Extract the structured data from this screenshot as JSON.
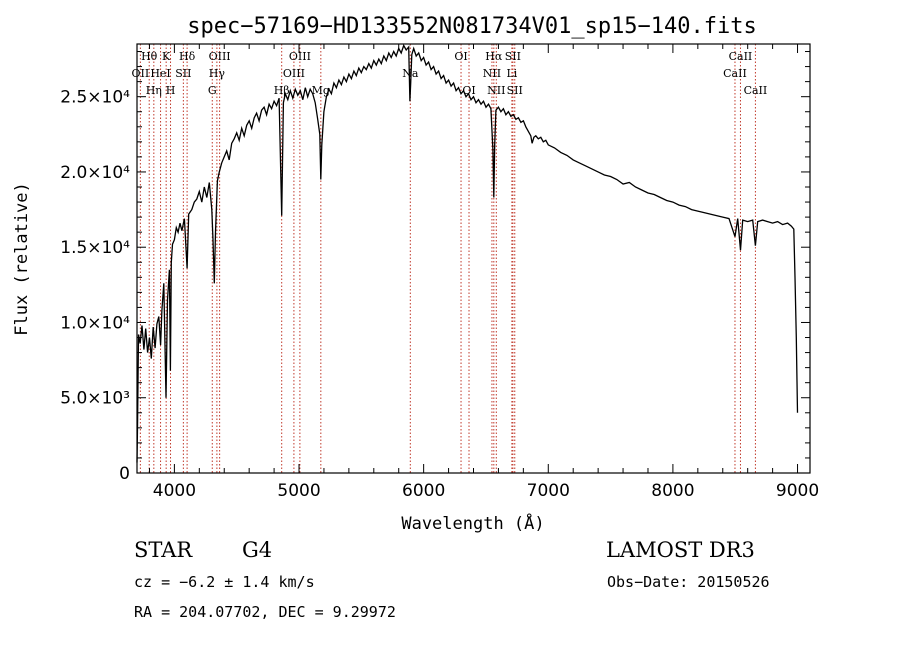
{
  "chart_data": {
    "type": "line",
    "title": "spec−57169−HD133552N081734V01_sp15−140.fits",
    "xlabel": "Wavelength (Å)",
    "ylabel": "Flux (relative)",
    "xlim": [
      3700,
      9100
    ],
    "ylim": [
      0,
      28500
    ],
    "x_ticks": [
      4000,
      5000,
      6000,
      7000,
      8000,
      9000
    ],
    "y_ticks": [
      {
        "value": 0,
        "label": "0"
      },
      {
        "value": 5000,
        "label": "5.0×10³"
      },
      {
        "value": 10000,
        "label": "1.0×10⁴"
      },
      {
        "value": 15000,
        "label": "1.5×10⁴"
      },
      {
        "value": 20000,
        "label": "2.0×10⁴"
      },
      {
        "value": 25000,
        "label": "2.5×10⁴"
      }
    ],
    "series": [
      {
        "name": "flux",
        "points": [
          [
            3700,
            700
          ],
          [
            3705,
            3500
          ],
          [
            3712,
            9200
          ],
          [
            3725,
            8600
          ],
          [
            3740,
            9800
          ],
          [
            3755,
            8200
          ],
          [
            3770,
            9600
          ],
          [
            3785,
            8000
          ],
          [
            3800,
            9000
          ],
          [
            3815,
            7600
          ],
          [
            3830,
            9700
          ],
          [
            3845,
            8300
          ],
          [
            3860,
            9900
          ],
          [
            3875,
            10400
          ],
          [
            3889,
            8500
          ],
          [
            3900,
            10800
          ],
          [
            3915,
            12600
          ],
          [
            3933,
            5000
          ],
          [
            3945,
            11500
          ],
          [
            3960,
            13500
          ],
          [
            3968,
            6800
          ],
          [
            3975,
            14000
          ],
          [
            3985,
            15200
          ],
          [
            4000,
            15500
          ],
          [
            4015,
            16300
          ],
          [
            4030,
            16000
          ],
          [
            4045,
            16600
          ],
          [
            4060,
            16100
          ],
          [
            4080,
            16900
          ],
          [
            4102,
            13600
          ],
          [
            4115,
            17200
          ],
          [
            4140,
            17500
          ],
          [
            4160,
            18000
          ],
          [
            4180,
            18200
          ],
          [
            4200,
            18700
          ],
          [
            4220,
            18000
          ],
          [
            4240,
            19000
          ],
          [
            4260,
            18300
          ],
          [
            4280,
            19300
          ],
          [
            4300,
            17500
          ],
          [
            4310,
            15500
          ],
          [
            4320,
            12600
          ],
          [
            4330,
            16000
          ],
          [
            4345,
            19400
          ],
          [
            4360,
            20000
          ],
          [
            4380,
            20600
          ],
          [
            4400,
            21000
          ],
          [
            4420,
            21400
          ],
          [
            4440,
            20800
          ],
          [
            4460,
            21900
          ],
          [
            4480,
            22200
          ],
          [
            4500,
            22600
          ],
          [
            4520,
            22100
          ],
          [
            4540,
            22900
          ],
          [
            4560,
            22400
          ],
          [
            4580,
            23100
          ],
          [
            4600,
            23400
          ],
          [
            4620,
            22900
          ],
          [
            4640,
            23600
          ],
          [
            4660,
            23900
          ],
          [
            4680,
            23400
          ],
          [
            4700,
            24100
          ],
          [
            4720,
            24300
          ],
          [
            4740,
            23800
          ],
          [
            4760,
            24500
          ],
          [
            4780,
            24200
          ],
          [
            4800,
            24700
          ],
          [
            4820,
            24400
          ],
          [
            4840,
            24900
          ],
          [
            4861,
            17100
          ],
          [
            4875,
            24600
          ],
          [
            4890,
            25200
          ],
          [
            4910,
            24800
          ],
          [
            4930,
            25400
          ],
          [
            4950,
            24900
          ],
          [
            4970,
            25500
          ],
          [
            4990,
            25100
          ],
          [
            5010,
            25400
          ],
          [
            5030,
            24800
          ],
          [
            5050,
            25600
          ],
          [
            5070,
            25000
          ],
          [
            5090,
            25500
          ],
          [
            5110,
            25200
          ],
          [
            5130,
            24600
          ],
          [
            5150,
            23500
          ],
          [
            5167,
            22500
          ],
          [
            5175,
            19500
          ],
          [
            5183,
            21800
          ],
          [
            5200,
            24000
          ],
          [
            5220,
            25000
          ],
          [
            5240,
            25500
          ],
          [
            5260,
            25200
          ],
          [
            5280,
            25900
          ],
          [
            5300,
            25600
          ],
          [
            5320,
            26100
          ],
          [
            5340,
            25800
          ],
          [
            5360,
            26300
          ],
          [
            5380,
            26000
          ],
          [
            5400,
            26500
          ],
          [
            5420,
            26200
          ],
          [
            5440,
            26700
          ],
          [
            5460,
            26400
          ],
          [
            5480,
            26900
          ],
          [
            5500,
            26600
          ],
          [
            5520,
            27000
          ],
          [
            5540,
            26800
          ],
          [
            5560,
            27200
          ],
          [
            5580,
            26900
          ],
          [
            5600,
            27400
          ],
          [
            5620,
            27100
          ],
          [
            5640,
            27500
          ],
          [
            5660,
            27200
          ],
          [
            5680,
            27700
          ],
          [
            5700,
            27400
          ],
          [
            5720,
            27900
          ],
          [
            5740,
            27600
          ],
          [
            5760,
            28000
          ],
          [
            5780,
            27700
          ],
          [
            5800,
            28200
          ],
          [
            5820,
            27900
          ],
          [
            5840,
            28400
          ],
          [
            5860,
            28100
          ],
          [
            5880,
            28300
          ],
          [
            5890,
            24700
          ],
          [
            5896,
            25900
          ],
          [
            5905,
            27800
          ],
          [
            5920,
            28200
          ],
          [
            5940,
            27700
          ],
          [
            5960,
            27900
          ],
          [
            5980,
            27400
          ],
          [
            6000,
            27600
          ],
          [
            6020,
            27100
          ],
          [
            6040,
            27300
          ],
          [
            6060,
            26800
          ],
          [
            6080,
            27000
          ],
          [
            6100,
            26500
          ],
          [
            6120,
            26700
          ],
          [
            6140,
            26200
          ],
          [
            6160,
            26400
          ],
          [
            6180,
            25900
          ],
          [
            6200,
            26100
          ],
          [
            6220,
            25700
          ],
          [
            6240,
            25900
          ],
          [
            6260,
            25400
          ],
          [
            6280,
            25600
          ],
          [
            6300,
            25200
          ],
          [
            6320,
            25400
          ],
          [
            6340,
            25000
          ],
          [
            6360,
            25200
          ],
          [
            6380,
            24800
          ],
          [
            6400,
            25000
          ],
          [
            6420,
            24600
          ],
          [
            6440,
            24800
          ],
          [
            6460,
            24500
          ],
          [
            6480,
            24700
          ],
          [
            6500,
            24300
          ],
          [
            6520,
            24500
          ],
          [
            6540,
            24200
          ],
          [
            6556,
            21500
          ],
          [
            6563,
            18300
          ],
          [
            6570,
            21800
          ],
          [
            6580,
            24100
          ],
          [
            6600,
            24300
          ],
          [
            6620,
            24000
          ],
          [
            6640,
            24200
          ],
          [
            6660,
            23800
          ],
          [
            6680,
            24000
          ],
          [
            6700,
            23700
          ],
          [
            6720,
            23800
          ],
          [
            6740,
            23500
          ],
          [
            6760,
            23600
          ],
          [
            6780,
            23300
          ],
          [
            6800,
            23400
          ],
          [
            6820,
            23000
          ],
          [
            6840,
            22700
          ],
          [
            6860,
            22400
          ],
          [
            6870,
            21900
          ],
          [
            6885,
            22300
          ],
          [
            6900,
            22400
          ],
          [
            6920,
            22200
          ],
          [
            6940,
            22300
          ],
          [
            6960,
            22000
          ],
          [
            6980,
            22100
          ],
          [
            7000,
            21800
          ],
          [
            7050,
            21600
          ],
          [
            7100,
            21300
          ],
          [
            7150,
            21100
          ],
          [
            7200,
            20800
          ],
          [
            7250,
            20600
          ],
          [
            7300,
            20400
          ],
          [
            7350,
            20200
          ],
          [
            7400,
            20000
          ],
          [
            7450,
            19800
          ],
          [
            7500,
            19700
          ],
          [
            7550,
            19500
          ],
          [
            7600,
            19200
          ],
          [
            7650,
            19300
          ],
          [
            7700,
            19000
          ],
          [
            7750,
            18800
          ],
          [
            7800,
            18600
          ],
          [
            7850,
            18500
          ],
          [
            7900,
            18300
          ],
          [
            7950,
            18100
          ],
          [
            8000,
            18000
          ],
          [
            8050,
            17800
          ],
          [
            8100,
            17700
          ],
          [
            8150,
            17500
          ],
          [
            8200,
            17400
          ],
          [
            8250,
            17300
          ],
          [
            8300,
            17200
          ],
          [
            8350,
            17100
          ],
          [
            8400,
            17000
          ],
          [
            8450,
            16900
          ],
          [
            8498,
            15700
          ],
          [
            8520,
            16900
          ],
          [
            8542,
            14800
          ],
          [
            8560,
            16800
          ],
          [
            8600,
            16700
          ],
          [
            8640,
            16800
          ],
          [
            8662,
            15100
          ],
          [
            8680,
            16700
          ],
          [
            8720,
            16800
          ],
          [
            8760,
            16700
          ],
          [
            8800,
            16600
          ],
          [
            8840,
            16700
          ],
          [
            8880,
            16500
          ],
          [
            8920,
            16600
          ],
          [
            8950,
            16400
          ],
          [
            8970,
            16200
          ],
          [
            8980,
            13000
          ],
          [
            8990,
            9000
          ],
          [
            9000,
            4000
          ]
        ]
      }
    ],
    "line_markers": [
      {
        "wavelength": 3727,
        "label": "OII",
        "row": 2
      },
      {
        "wavelength": 3798,
        "label": "Hθ",
        "row": 1
      },
      {
        "wavelength": 3835,
        "label": "Hη",
        "row": 3
      },
      {
        "wavelength": 3889,
        "label": "HeI",
        "row": 2
      },
      {
        "wavelength": 3934,
        "label": "K",
        "row": 1
      },
      {
        "wavelength": 3969,
        "label": "H",
        "row": 3
      },
      {
        "wavelength": 4072,
        "label": "SII",
        "row": 2
      },
      {
        "wavelength": 4102,
        "label": "Hδ",
        "row": 1
      },
      {
        "wavelength": 4304,
        "label": "G",
        "row": 3
      },
      {
        "wavelength": 4341,
        "label": "Hγ",
        "row": 2
      },
      {
        "wavelength": 4363,
        "label": "OIII",
        "row": 1
      },
      {
        "wavelength": 4861,
        "label": "Hβ",
        "row": 3
      },
      {
        "wavelength": 4959,
        "label": "OIII",
        "row": 2
      },
      {
        "wavelength": 5007,
        "label": "OIII",
        "row": 1
      },
      {
        "wavelength": 5175,
        "label": "Mg",
        "row": 3
      },
      {
        "wavelength": 5893,
        "label": "Na",
        "row": 2
      },
      {
        "wavelength": 6300,
        "label": "OI",
        "row": 1
      },
      {
        "wavelength": 6364,
        "label": "OI",
        "row": 3
      },
      {
        "wavelength": 6548,
        "label": "NII",
        "row": 2
      },
      {
        "wavelength": 6563,
        "label": "Hα",
        "row": 1
      },
      {
        "wavelength": 6583,
        "label": "NII",
        "row": 3
      },
      {
        "wavelength": 6708,
        "label": "Li",
        "row": 2
      },
      {
        "wavelength": 6716,
        "label": "SII",
        "row": 1
      },
      {
        "wavelength": 6731,
        "label": "SII",
        "row": 3
      },
      {
        "wavelength": 8498,
        "label": "CaII",
        "row": 2
      },
      {
        "wavelength": 8542,
        "label": "CaII",
        "row": 1
      },
      {
        "wavelength": 8662,
        "label": "CaII",
        "row": 3
      }
    ]
  },
  "info": {
    "class_label": "STAR",
    "subclass_label": "G4",
    "redshift_text": "cz = −6.2 ± 1.4 km/s",
    "coords_text": "RA = 204.07702, DEC =    9.29972",
    "survey_label": "LAMOST DR3",
    "obs_date_text": "Obs−Date: 20150526"
  }
}
